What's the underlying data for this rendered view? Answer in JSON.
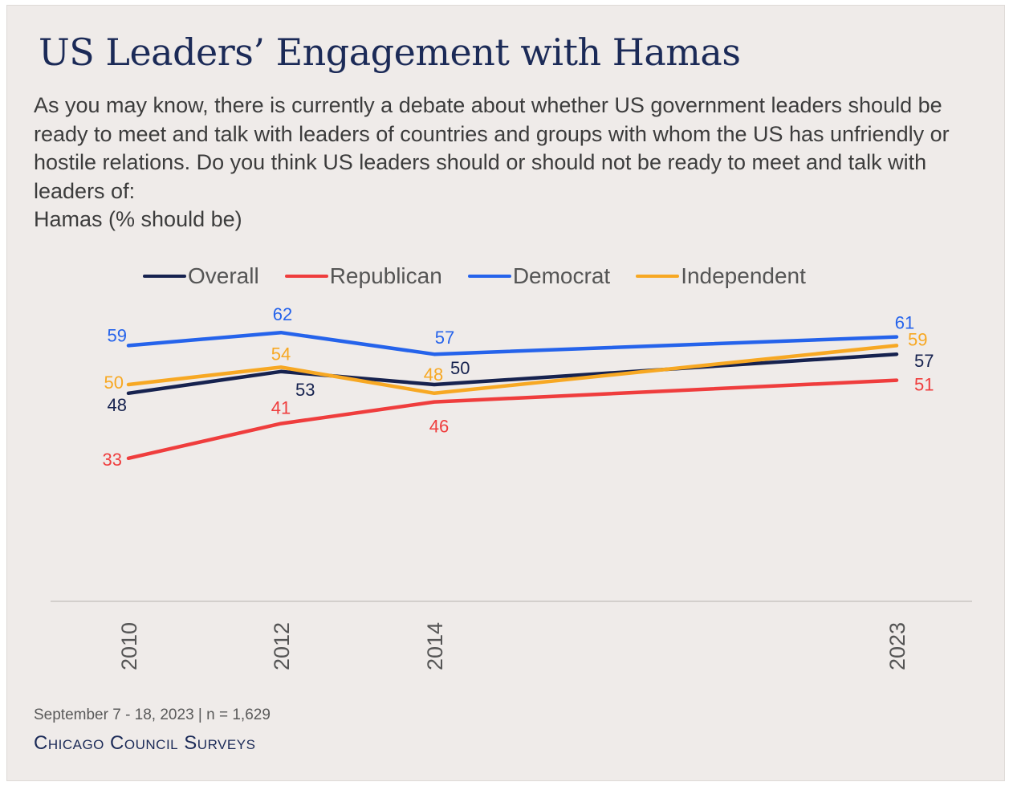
{
  "title": "US Leaders’ Engagement with Hamas",
  "subtitle": {
    "question": "As you may know, there is currently a debate about whether US government leaders should be ready to meet and talk with leaders of countries and groups with whom the US has unfriendly or hostile relations. Do you think US leaders should or should not be ready to meet and talk with leaders of:",
    "topic": "Hamas",
    "unit": " (% should be)"
  },
  "footer": {
    "note": "September 7 - 18, 2023 | n = 1,629",
    "brand": "Chicago Council Surveys"
  },
  "chart_data": {
    "type": "line",
    "x": [
      2010,
      2012,
      2014,
      2023
    ],
    "x_tick_labels": [
      "2010",
      "2012",
      "2014",
      "2023"
    ],
    "ylim": [
      0,
      100
    ],
    "grid": false,
    "legend_position": "top",
    "series": [
      {
        "name": "Overall",
        "color": "#16224f",
        "values": [
          48,
          53,
          50,
          57
        ]
      },
      {
        "name": "Republican",
        "color": "#ef3d3d",
        "values": [
          33,
          41,
          46,
          51
        ]
      },
      {
        "name": "Democrat",
        "color": "#2563eb",
        "values": [
          59,
          62,
          57,
          61
        ]
      },
      {
        "name": "Independent",
        "color": "#f7a823",
        "values": [
          50,
          54,
          48,
          59
        ]
      }
    ]
  }
}
